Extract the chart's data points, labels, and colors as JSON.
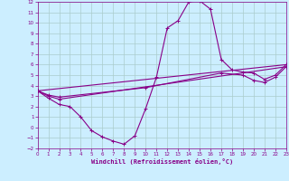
{
  "xlabel": "Windchill (Refroidissement éolien,°C)",
  "background_color": "#cceeff",
  "grid_color": "#aacccc",
  "line_color": "#880088",
  "xlim": [
    0,
    23
  ],
  "ylim": [
    -2,
    12
  ],
  "xticks": [
    0,
    1,
    2,
    3,
    4,
    5,
    6,
    7,
    8,
    9,
    10,
    11,
    12,
    13,
    14,
    15,
    16,
    17,
    18,
    19,
    20,
    21,
    22,
    23
  ],
  "yticks": [
    -2,
    -1,
    0,
    1,
    2,
    3,
    4,
    5,
    6,
    7,
    8,
    9,
    10,
    11,
    12
  ],
  "line1_x": [
    0,
    1,
    2,
    3,
    4,
    5,
    6,
    7,
    8,
    9,
    10,
    11,
    12,
    13,
    14,
    15,
    16,
    17,
    18,
    19,
    20,
    21,
    22,
    23
  ],
  "line1_y": [
    3.5,
    2.8,
    2.2,
    2.0,
    1.0,
    -0.3,
    -0.9,
    -1.3,
    -1.6,
    -0.8,
    1.8,
    4.8,
    9.5,
    10.2,
    12.0,
    12.1,
    11.3,
    6.5,
    5.5,
    5.3,
    5.2,
    4.6,
    5.0,
    6.0
  ],
  "line2_x": [
    0,
    23
  ],
  "line2_y": [
    3.5,
    6.0
  ],
  "line3_x": [
    0,
    1,
    2,
    23
  ],
  "line3_y": [
    3.5,
    3.0,
    2.7,
    5.8
  ],
  "line4_x": [
    0,
    1,
    2,
    10,
    17,
    19,
    20,
    21,
    22,
    23
  ],
  "line4_y": [
    3.5,
    3.1,
    2.9,
    3.8,
    5.2,
    5.0,
    4.5,
    4.3,
    4.8,
    5.8
  ]
}
